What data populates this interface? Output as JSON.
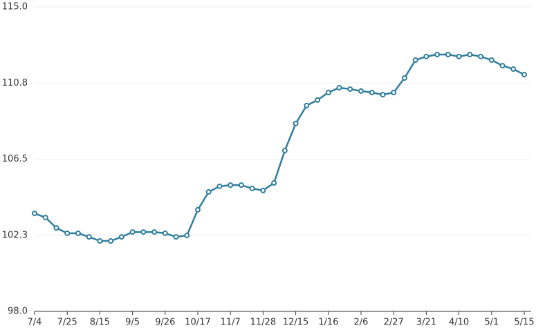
{
  "chart_data": {
    "type": "line",
    "categories": [
      "7/4",
      null,
      null,
      "7/25",
      null,
      null,
      "8/15",
      null,
      null,
      "9/5",
      null,
      null,
      "9/26",
      null,
      null,
      "10/17",
      null,
      null,
      "11/7",
      null,
      null,
      "11/28",
      null,
      null,
      "12/15",
      null,
      null,
      "1/16",
      null,
      null,
      "2/6",
      null,
      null,
      "2/27",
      null,
      null,
      "3/21",
      null,
      null,
      "4/10",
      null,
      null,
      "5/1",
      null,
      null,
      "5/15"
    ],
    "values": [
      103.47,
      103.24,
      102.66,
      102.36,
      102.36,
      102.16,
      101.93,
      101.93,
      102.16,
      102.43,
      102.43,
      102.43,
      102.36,
      102.16,
      102.24,
      103.67,
      104.67,
      104.98,
      105.05,
      105.05,
      104.86,
      104.75,
      105.17,
      106.98,
      108.49,
      109.49,
      109.8,
      110.22,
      110.49,
      110.41,
      110.3,
      110.22,
      110.1,
      110.22,
      111.03,
      112.03,
      112.23,
      112.34,
      112.34,
      112.23,
      112.34,
      112.23,
      112.03,
      111.72,
      111.53,
      111.22
    ],
    "color": "#2f7d9c",
    "ylim": [
      98,
      115
    ],
    "yticks": [
      {
        "value": 98,
        "label": "98.0"
      },
      {
        "value": 102.25,
        "label": "102.3"
      },
      106.5,
      {
        "value": 110.75,
        "label": "110.8"
      },
      {
        "value": 115,
        "label": "115.0"
      }
    ],
    "grid": true
  }
}
